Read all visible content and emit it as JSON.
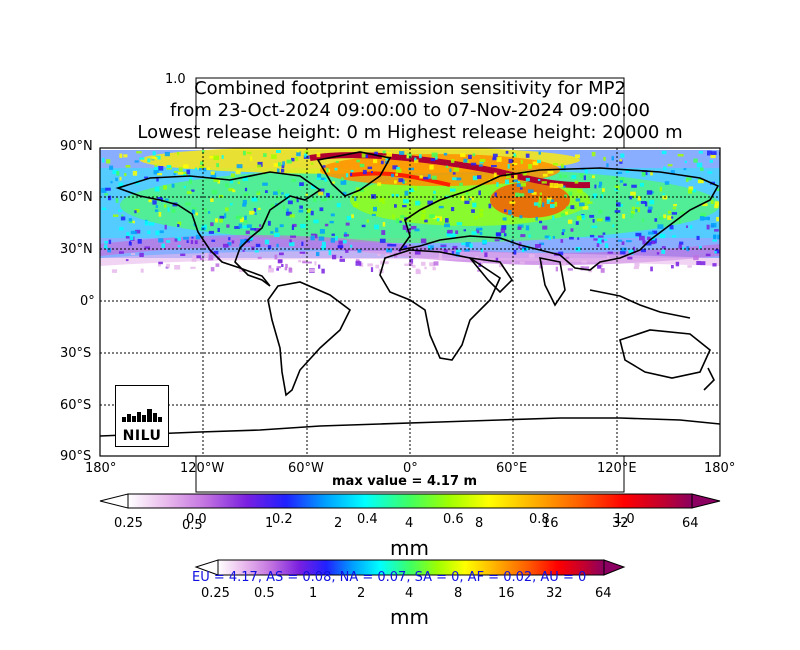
{
  "title": {
    "line1": "Combined footprint emission sensitivity for MP2",
    "line2": "from 23-Oct-2024 09:00:00 to 07-Nov-2024 09:00:00",
    "line3": "Lowest release height: 0 m       Highest release height: 20000 m"
  },
  "stray_tick_top": "1.0",
  "lat_ticks": [
    "90°N",
    "60°N",
    "30°N",
    "0°",
    "30°S",
    "60°S",
    "90°S"
  ],
  "lon_ticks": [
    "180°",
    "120°W",
    "60°W",
    "0°",
    "60°E",
    "120°E",
    "180°"
  ],
  "max_value": "max value = 4.17 m",
  "colorbar1": {
    "ticks": [
      "0.25",
      "0.5",
      "1",
      "2",
      "4",
      "8",
      "16",
      "32",
      "64"
    ],
    "overlay_ticks": [
      "0.0",
      "0.2",
      "0.4",
      "0.6",
      "0.8",
      "1.0"
    ],
    "unit": "mm"
  },
  "colorbar2": {
    "ticks": [
      "0.25",
      "0.5",
      "1",
      "2",
      "4",
      "8",
      "16",
      "32",
      "64"
    ],
    "unit": "mm"
  },
  "region_stats": "EU = 4.17,  AS = 0.08,  NA = 0.07,  SA = 0,  AF = 0.02,  AU = 0",
  "logo": {
    "text": "NILU"
  },
  "colors": {
    "scale": [
      "#ffffff",
      "#e8b8ec",
      "#c070e0",
      "#7a20e0",
      "#2020ff",
      "#00a0ff",
      "#00ffff",
      "#40ff60",
      "#a0ff00",
      "#ffff00",
      "#ffb000",
      "#ff6000",
      "#ff0000",
      "#c00030",
      "#8b0060"
    ],
    "stats_text": "#1010e0",
    "logo_arc": "#1ea0e6"
  }
}
